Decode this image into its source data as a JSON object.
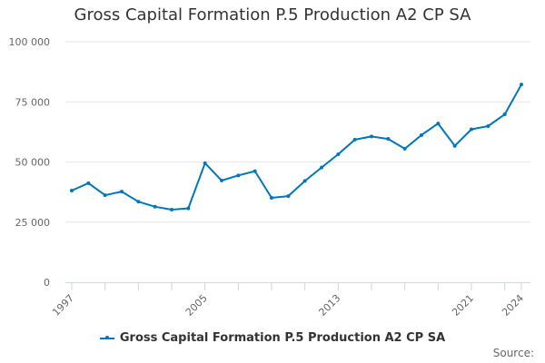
{
  "title": "Gross Capital Formation P.5 Production A2 CP SA",
  "legend": {
    "label": "Gross Capital Formation P.5 Production A2 CP SA",
    "color": "#0077bb"
  },
  "source_label": "Source:",
  "y_ticks": [
    "0",
    "25 000",
    "50 000",
    "75 000",
    "100 000"
  ],
  "x_ticks": [
    "1997",
    "2005",
    "2013",
    "2021",
    "2024"
  ],
  "chart_data": {
    "type": "line",
    "title": "Gross Capital Formation P.5 Production A2 CP SA",
    "xlabel": "",
    "ylabel": "",
    "ylim": [
      0,
      100000
    ],
    "grid": true,
    "legend_position": "bottom",
    "x": [
      1997,
      1998,
      1999,
      2000,
      2001,
      2002,
      2003,
      2004,
      2005,
      2006,
      2007,
      2008,
      2009,
      2010,
      2011,
      2012,
      2013,
      2014,
      2015,
      2016,
      2017,
      2018,
      2019,
      2020,
      2021,
      2022,
      2023,
      2024
    ],
    "series": [
      {
        "name": "Gross Capital Formation P.5 Production A2 CP SA",
        "color": "#0077bb",
        "values": [
          38100,
          41200,
          36200,
          37700,
          33500,
          31400,
          30200,
          30700,
          49500,
          42300,
          44400,
          46200,
          35100,
          35800,
          42100,
          47700,
          53200,
          59300,
          60600,
          59600,
          55500,
          61200,
          66000,
          56700,
          63600,
          64900,
          69800,
          82200
        ]
      }
    ],
    "y_tick_labels": [
      "0",
      "25 000",
      "50 000",
      "75 000",
      "100 000"
    ],
    "x_tick_labels": [
      "1997",
      "2005",
      "2013",
      "2021",
      "2024"
    ]
  }
}
